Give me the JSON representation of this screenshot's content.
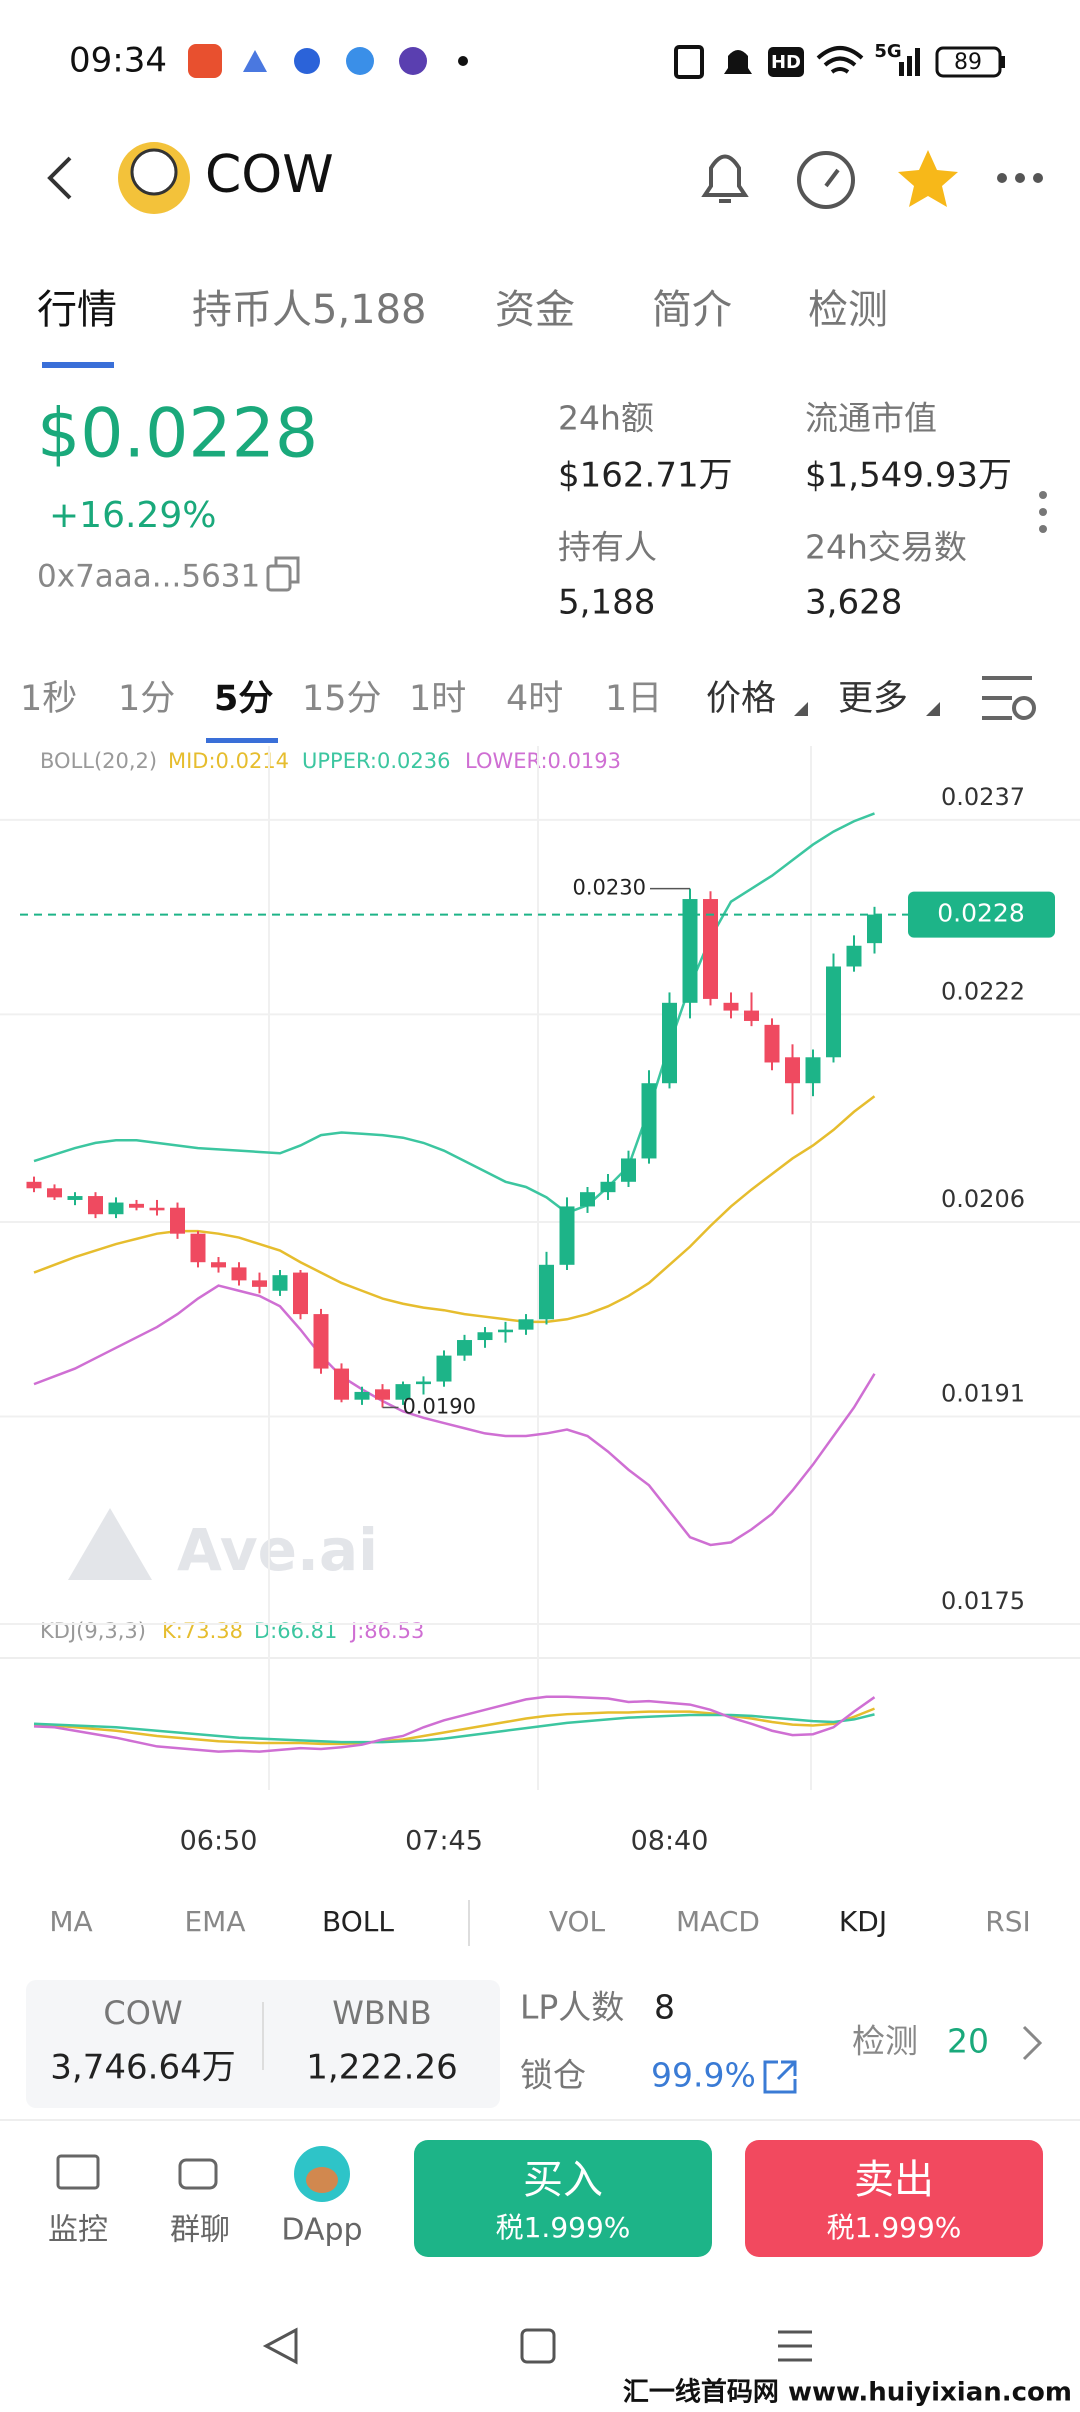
{
  "status_bar": {
    "time": "09:34",
    "hd": "HD",
    "network": "5G",
    "battery": "89"
  },
  "header": {
    "title": "COW"
  },
  "tabs": [
    "行情",
    "持币人5,188",
    "资金",
    "简介",
    "检测"
  ],
  "price": {
    "value": "$0.0228",
    "change": "+16.29%",
    "address": "0x7aaa...5631"
  },
  "stats": [
    {
      "label": "24h额",
      "value": "$162.71万"
    },
    {
      "label": "流通市值",
      "value": "$1,549.93万"
    },
    {
      "label": "持有人",
      "value": "5,188"
    },
    {
      "label": "24h交易数",
      "value": "3,628"
    }
  ],
  "intervals": [
    "1秒",
    "1分",
    "5分",
    "15分",
    "1时",
    "4时",
    "1日",
    "价格",
    "更多"
  ],
  "chart_data": {
    "type": "candlestick",
    "indicator": "BOLL(20,2)",
    "watermark": "Ave.ai",
    "categories": [
      null,
      null,
      null,
      null,
      null,
      null,
      null,
      null,
      null,
      "06:50",
      null,
      null,
      null,
      null,
      null,
      null,
      null,
      null,
      null,
      null,
      "07:45",
      null,
      null,
      null,
      null,
      null,
      null,
      null,
      null,
      null,
      null,
      "08:40",
      null,
      null,
      null,
      null,
      null,
      null,
      null,
      null,
      null,
      null
    ],
    "open": [
      0.02074,
      0.02069,
      0.0206,
      0.02063,
      0.02049,
      0.02057,
      0.02054,
      0.02054,
      0.02034,
      0.02012,
      0.02008,
      0.01998,
      0.0199,
      0.02004,
      0.01972,
      0.0193,
      0.01906,
      0.01914,
      0.01906,
      0.01918,
      0.0192,
      0.0194,
      0.01952,
      0.01958,
      0.0196,
      0.01968,
      0.0201,
      0.02055,
      0.02066,
      0.02074,
      0.02092,
      0.0215,
      0.02212,
      0.02292,
      0.02212,
      0.02206,
      0.02195,
      0.0217,
      0.0215,
      0.0217,
      0.0224,
      0.02258
    ],
    "high": [
      0.02078,
      0.02072,
      0.02066,
      0.02066,
      0.02062,
      0.0206,
      0.0206,
      0.02058,
      0.02036,
      0.02016,
      0.02012,
      0.02004,
      0.02006,
      0.02006,
      0.01976,
      0.01934,
      0.01916,
      0.01918,
      0.0192,
      0.01924,
      0.01944,
      0.01956,
      0.01962,
      0.01966,
      0.01972,
      0.0202,
      0.02062,
      0.0207,
      0.0208,
      0.02098,
      0.0216,
      0.0222,
      0.023,
      0.02298,
      0.0222,
      0.0222,
      0.022,
      0.0218,
      0.02176,
      0.0225,
      0.02264,
      0.02286
    ],
    "low": [
      0.02066,
      0.0206,
      0.02056,
      0.02046,
      0.02046,
      0.02052,
      0.02048,
      0.0203,
      0.02008,
      0.02004,
      0.01994,
      0.01988,
      0.01986,
      0.01968,
      0.01926,
      0.01904,
      0.01902,
      0.019,
      0.01902,
      0.0191,
      0.01916,
      0.01936,
      0.01946,
      0.0195,
      0.01956,
      0.01964,
      0.02006,
      0.0205,
      0.0206,
      0.0207,
      0.02088,
      0.02146,
      0.022,
      0.0221,
      0.022,
      0.02194,
      0.0216,
      0.02126,
      0.0214,
      0.02166,
      0.02236,
      0.0225
    ],
    "close": [
      0.02069,
      0.02062,
      0.02063,
      0.02049,
      0.02058,
      0.02054,
      0.02052,
      0.02034,
      0.02012,
      0.02008,
      0.01998,
      0.01993,
      0.02002,
      0.01972,
      0.0193,
      0.01906,
      0.01912,
      0.01906,
      0.01918,
      0.0192,
      0.0194,
      0.01952,
      0.01958,
      0.0196,
      0.01968,
      0.0201,
      0.02055,
      0.02066,
      0.02074,
      0.02092,
      0.0215,
      0.02212,
      0.02292,
      0.02215,
      0.02206,
      0.02198,
      0.02166,
      0.0215,
      0.0217,
      0.0224,
      0.02256,
      0.0228
    ],
    "up_color": "#1db488",
    "down_color": "#ef4a60",
    "series": [
      {
        "name": "MID:0.0214",
        "color": "#e6bd2e",
        "values": [
          0.02004,
          0.0201,
          0.02016,
          0.02021,
          0.02026,
          0.0203,
          0.02034,
          0.02036,
          0.02036,
          0.02034,
          0.02031,
          0.02026,
          0.02021,
          0.02012,
          0.02004,
          0.01996,
          0.0199,
          0.01984,
          0.0198,
          0.01977,
          0.01975,
          0.01972,
          0.0197,
          0.01968,
          0.01966,
          0.01966,
          0.01968,
          0.01972,
          0.01978,
          0.01986,
          0.01996,
          0.0201,
          0.02024,
          0.0204,
          0.02055,
          0.02068,
          0.0208,
          0.02092,
          0.02102,
          0.02114,
          0.02128,
          0.0214
        ]
      },
      {
        "name": "UPPER:0.0236",
        "color": "#3cc6a0",
        "values": [
          0.0209,
          0.02095,
          0.021,
          0.02104,
          0.02106,
          0.02106,
          0.02104,
          0.02102,
          0.021,
          0.02099,
          0.02098,
          0.02097,
          0.02096,
          0.02102,
          0.0211,
          0.02112,
          0.02111,
          0.0211,
          0.02108,
          0.02104,
          0.02098,
          0.0209,
          0.02082,
          0.02074,
          0.0207,
          0.02062,
          0.0205,
          0.02056,
          0.0207,
          0.02086,
          0.0213,
          0.0218,
          0.02225,
          0.02262,
          0.0229,
          0.023,
          0.0231,
          0.02322,
          0.02334,
          0.02344,
          0.02352,
          0.02358
        ]
      },
      {
        "name": "LOWER:0.0193",
        "color": "#cf6fd3",
        "values": [
          0.01918,
          0.01924,
          0.0193,
          0.01938,
          0.01946,
          0.01954,
          0.01962,
          0.01972,
          0.01984,
          0.01994,
          0.0199,
          0.01986,
          0.01978,
          0.0196,
          0.0194,
          0.01924,
          0.01914,
          0.01905,
          0.01897,
          0.01892,
          0.01888,
          0.01884,
          0.0188,
          0.01878,
          0.01878,
          0.0188,
          0.01883,
          0.01878,
          0.01866,
          0.01852,
          0.0184,
          0.0182,
          0.018,
          0.01794,
          0.01796,
          0.01806,
          0.01818,
          0.01836,
          0.01856,
          0.01878,
          0.019,
          0.01926
        ]
      }
    ],
    "ylim": [
      0.0174,
      0.0241
    ],
    "yticks": [
      0.0237,
      0.0222,
      0.0206,
      0.0191,
      0.0175
    ],
    "grid": true,
    "last_price": 0.0228,
    "last_price_color": "#1db488",
    "max_label": {
      "value": 0.023,
      "label": "0.0230"
    },
    "min_label": {
      "value": 0.019,
      "label": "0.0190"
    },
    "kdj": {
      "label": "KDJ(9,3,3)",
      "ylim": [
        -20,
        120
      ],
      "series": [
        {
          "name": "K:73.38",
          "color": "#e6bd2e",
          "values": [
            55,
            54,
            52,
            50,
            48,
            45,
            42,
            40,
            38,
            36,
            35,
            34,
            34,
            34,
            33,
            33,
            34,
            36,
            38,
            42,
            46,
            50,
            54,
            58,
            62,
            65,
            67,
            68,
            69,
            69,
            70,
            70,
            70,
            68,
            65,
            62,
            58,
            55,
            54,
            56,
            64,
            73.38
          ]
        },
        {
          "name": "D:66.81",
          "color": "#3cc6a0",
          "values": [
            56,
            55,
            54,
            53,
            52,
            50,
            48,
            46,
            44,
            42,
            40,
            39,
            38,
            37,
            36,
            35,
            35,
            35,
            36,
            37,
            39,
            42,
            45,
            48,
            51,
            54,
            57,
            59,
            61,
            63,
            64,
            65,
            66,
            66,
            66,
            65,
            63,
            61,
            59,
            58,
            61,
            66.81
          ]
        },
        {
          "name": "J:86.53",
          "color": "#cf6fd3",
          "values": [
            53,
            52,
            48,
            44,
            40,
            35,
            30,
            28,
            26,
            24,
            25,
            24,
            26,
            28,
            27,
            29,
            32,
            38,
            42,
            52,
            60,
            66,
            72,
            78,
            84,
            87,
            87,
            86,
            85,
            81,
            82,
            80,
            78,
            72,
            63,
            56,
            48,
            43,
            44,
            52,
            70,
            86.53
          ]
        }
      ]
    }
  },
  "indicator_tabs": [
    "MA",
    "EMA",
    "BOLL",
    "VOL",
    "MACD",
    "KDJ",
    "RSI"
  ],
  "pool": {
    "token_a": "COW",
    "amount_a": "3,746.64万",
    "token_b": "WBNB",
    "amount_b": "1,222.26",
    "lp_label": "LP人数",
    "lp_count": "8",
    "lock_label": "锁仓",
    "lock_value": "99.9%",
    "check_label": "检测",
    "check_value": "20"
  },
  "nav": [
    "监控",
    "群聊",
    "DApp"
  ],
  "buy": {
    "label": "买入",
    "tax": "税1.999%"
  },
  "sell": {
    "label": "卖出",
    "tax": "税1.999%"
  },
  "footer_watermark": "汇一线首码网 www.huiyixian.com"
}
